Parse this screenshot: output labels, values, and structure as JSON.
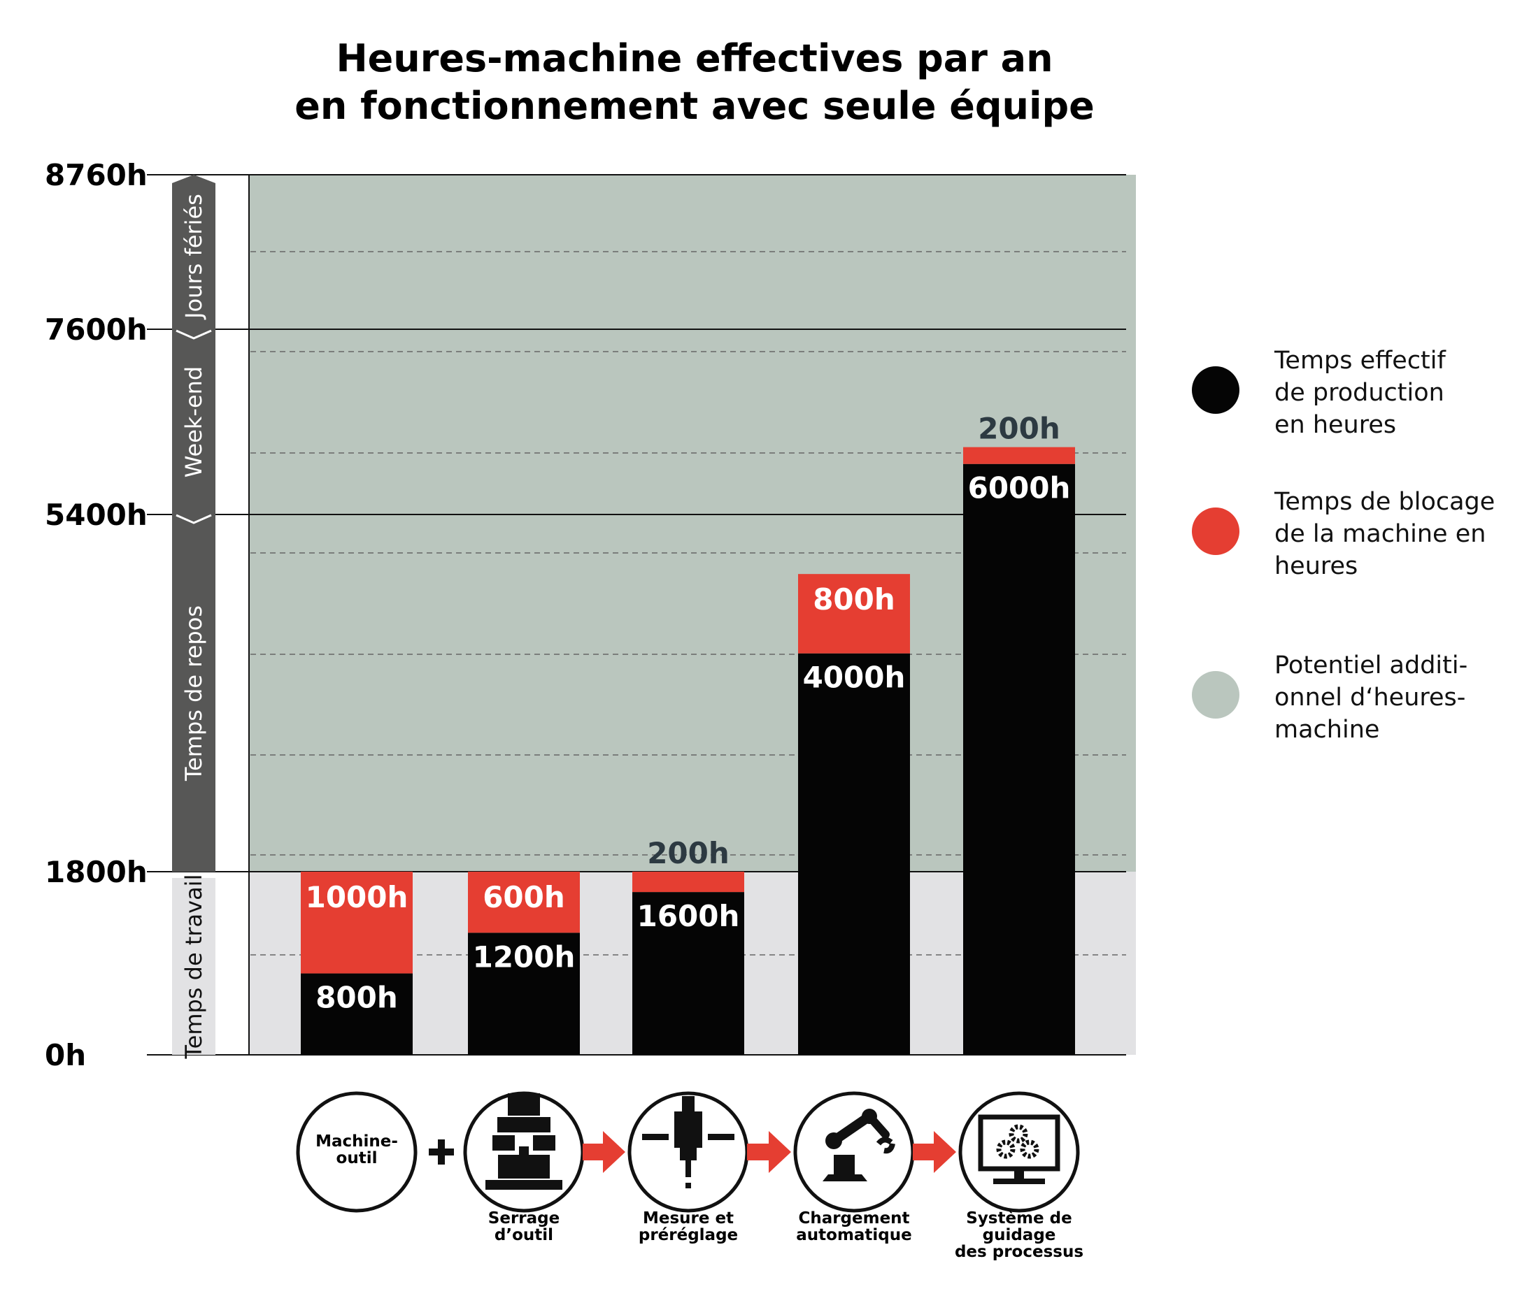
{
  "chart_data": {
    "type": "bar",
    "stacked": true,
    "title": [
      "Heures-machine effectives par an",
      "en fonctionnement avec seule équipe"
    ],
    "ylim": [
      0,
      8760
    ],
    "yticks": [
      {
        "value": 0,
        "label": "0h"
      },
      {
        "value": 1800,
        "label": "1800h"
      },
      {
        "value": 5400,
        "label": "5400h"
      },
      {
        "value": 7600,
        "label": "7600h"
      },
      {
        "value": 8760,
        "label": "8760h"
      }
    ],
    "time_bands": [
      {
        "label": "Temps de travail",
        "from": 0,
        "to": 1800,
        "style": "light"
      },
      {
        "label": "Temps de repos",
        "from": 1800,
        "to": 5400,
        "style": "dark"
      },
      {
        "label": "Week-end",
        "from": 5400,
        "to": 7600,
        "style": "dark"
      },
      {
        "label": "Jours fériés",
        "from": 7600,
        "to": 8760,
        "style": "dark"
      }
    ],
    "categories": [
      "Machine-outil",
      "Serrage d’outil",
      "Mesure et préréglage",
      "Chargement automatique",
      "Système de guidage des processus"
    ],
    "series": [
      {
        "name": "Temps effectif de production en heures",
        "color": "#050505",
        "text_color": "#ffffff",
        "values": [
          800,
          1200,
          1600,
          4000,
          6000
        ],
        "labels": [
          "800h",
          "1200h",
          "1600h",
          "4000h",
          "6000h"
        ]
      },
      {
        "name": "Temps de blocage de la machine en heures",
        "color": "#e53e32",
        "text_color": "#ffffff",
        "values": [
          1000,
          600,
          200,
          800,
          200
        ],
        "labels": [
          "1000h",
          "600h",
          "200h",
          "800h",
          "200h"
        ]
      }
    ],
    "legend": {
      "position": "right",
      "items": [
        {
          "lines": [
            "Temps effectif",
            "de production",
            "en heures"
          ],
          "color": "#050505"
        },
        {
          "lines": [
            "Temps de blocage",
            "de la machine en",
            "heures"
          ],
          "color": "#e53e32"
        },
        {
          "lines": [
            "Potentiel additi-",
            "onnel d‘heures-",
            "machine"
          ],
          "color": "#bac6be"
        }
      ]
    },
    "process_steps": [
      {
        "lines": [
          "Machine-",
          "outil"
        ],
        "label_inside": true,
        "icon": "machine-tool-icon"
      },
      {
        "lines": [
          "Serrage",
          "d’outil"
        ],
        "icon": "tool-clamping-icon"
      },
      {
        "lines": [
          "Mesure et",
          "préréglage"
        ],
        "icon": "tool-measuring-icon"
      },
      {
        "lines": [
          "Chargement",
          "automatique"
        ],
        "icon": "robot-arm-icon"
      },
      {
        "lines": [
          "Système de",
          "guidage",
          "des processus"
        ],
        "icon": "monitor-gears-icon"
      }
    ],
    "colors": {
      "production": "#050505",
      "blocking": "#e53e32",
      "potential": "#bac6be",
      "work_band": "#e2e2e4",
      "rest_band": "#575756",
      "arrow": "#e53e32",
      "value_above": "#2d3a42"
    }
  }
}
